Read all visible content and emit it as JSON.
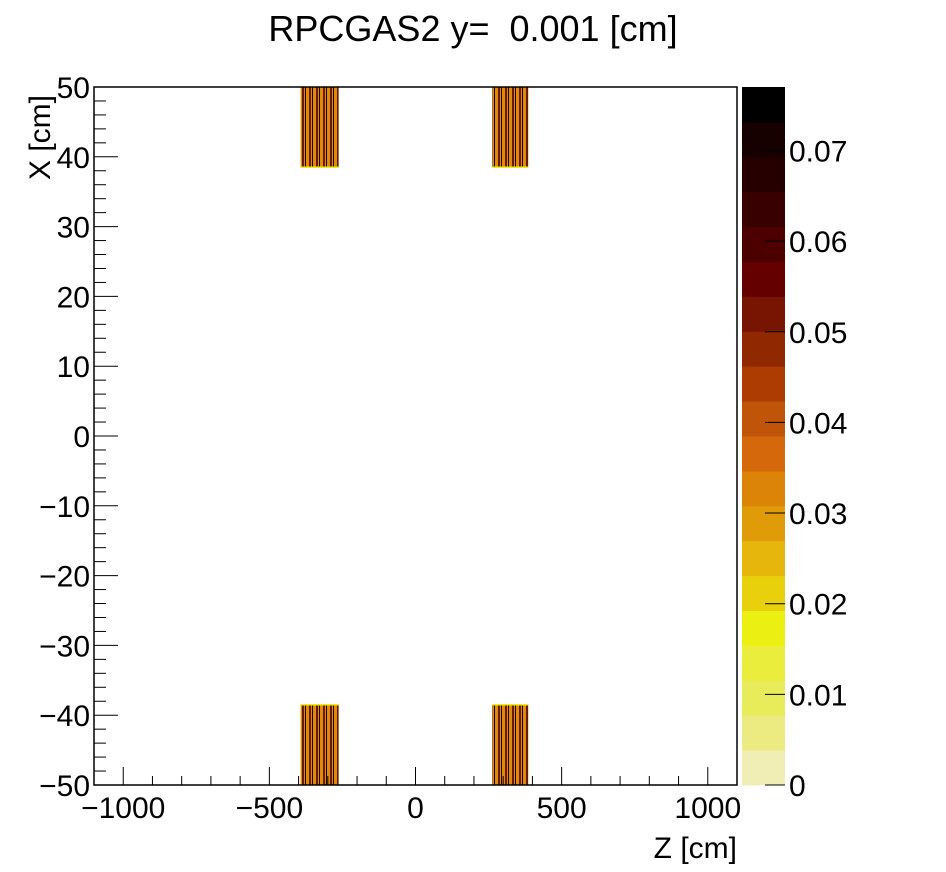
{
  "chart_data": {
    "type": "heatmap",
    "title": "RPCGAS2 y=  0.001 [cm]",
    "xlabel": "Z [cm]",
    "ylabel": "X [cm]",
    "xlim": [
      -1100,
      1100
    ],
    "ylim": [
      -50,
      50
    ],
    "x_ticks": [
      -1000,
      -500,
      0,
      500,
      1000
    ],
    "x_tick_labels": [
      "−1000",
      "−500",
      "0",
      "500",
      "1000"
    ],
    "y_ticks": [
      50,
      40,
      30,
      20,
      10,
      0,
      -10,
      -20,
      -30,
      -40,
      -50
    ],
    "y_tick_labels": [
      "50",
      "40",
      "30",
      "20",
      "10",
      "0",
      "−10",
      "−20",
      "−30",
      "−40",
      "−50"
    ],
    "grid": false,
    "colorbar": {
      "range": [
        0,
        0.077
      ],
      "ticks": [
        0,
        0.01,
        0.02,
        0.03,
        0.04,
        0.05,
        0.06,
        0.07
      ],
      "tick_labels": [
        "0",
        "0.01",
        "0.02",
        "0.03",
        "0.04",
        "0.05",
        "0.06",
        "0.07"
      ],
      "n_levels": 20,
      "colors": [
        "#f0eeb4",
        "#ebeb82",
        "#e8eb5a",
        "#eaed3c",
        "#ecf012",
        "#e8d00c",
        "#e6b60c",
        "#e09c08",
        "#dc8408",
        "#d4680a",
        "#c05408",
        "#ac3c02",
        "#902802",
        "#781402",
        "#640000",
        "#4c0000",
        "#380000",
        "#260000",
        "#160000",
        "#000000"
      ]
    },
    "regions": [
      {
        "z": [
          -393,
          -263
        ],
        "x": [
          38.5,
          50
        ],
        "value_range": [
          0.03,
          0.077
        ],
        "pattern": "striped"
      },
      {
        "z": [
          263,
          386
        ],
        "x": [
          38.5,
          50
        ],
        "value_range": [
          0.03,
          0.077
        ],
        "pattern": "striped"
      },
      {
        "z": [
          -393,
          -263
        ],
        "x": [
          -50,
          -38.5
        ],
        "value_range": [
          0.03,
          0.077
        ],
        "pattern": "striped"
      },
      {
        "z": [
          263,
          386
        ],
        "x": [
          -50,
          -38.5
        ],
        "value_range": [
          0.03,
          0.077
        ],
        "pattern": "striped"
      }
    ]
  }
}
